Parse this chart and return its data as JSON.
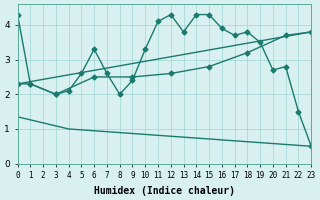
{
  "xlabel": "Humidex (Indice chaleur)",
  "ylabel": "",
  "bg_color": "#d8f0f0",
  "line_color": "#1a7a6e",
  "xlim": [
    0,
    23
  ],
  "ylim": [
    0,
    4.6
  ],
  "yticks": [
    0,
    1,
    2,
    3,
    4
  ],
  "xticks": [
    0,
    1,
    2,
    3,
    4,
    5,
    6,
    7,
    8,
    9,
    10,
    11,
    12,
    13,
    14,
    15,
    16,
    17,
    18,
    19,
    20,
    21,
    22,
    23
  ],
  "series1_x": [
    0,
    1,
    3,
    4,
    5,
    6,
    7,
    8,
    9,
    10,
    11,
    12,
    13,
    14,
    15,
    16,
    17,
    18,
    19,
    20,
    21,
    22,
    23
  ],
  "series1_y": [
    4.3,
    2.3,
    2.0,
    2.1,
    2.6,
    3.3,
    2.6,
    2.0,
    2.4,
    3.3,
    4.1,
    4.3,
    3.8,
    4.3,
    4.3,
    3.9,
    3.7,
    3.8,
    3.5,
    2.7,
    2.8,
    1.5,
    0.5
  ],
  "series2_x": [
    0,
    1,
    3,
    6,
    9,
    12,
    15,
    18,
    21,
    23
  ],
  "series2_y": [
    2.3,
    2.3,
    2.0,
    2.5,
    2.5,
    2.6,
    2.8,
    3.2,
    3.7,
    3.8
  ],
  "series3_x": [
    0,
    23
  ],
  "series3_y": [
    2.3,
    3.8
  ],
  "series4_x": [
    0,
    4,
    23
  ],
  "series4_y": [
    1.35,
    1.0,
    0.5
  ]
}
